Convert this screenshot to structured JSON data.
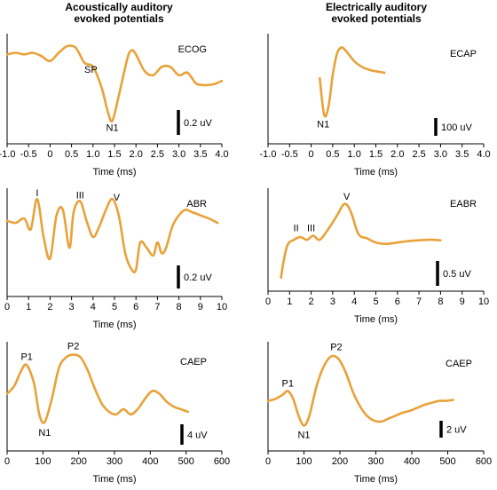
{
  "columns": [
    {
      "title_line1": "Acoustically auditory",
      "title_line2": "evoked potentials"
    },
    {
      "title_line1": "Electrically auditory",
      "title_line2": "evoked potentials"
    }
  ],
  "colors": {
    "trace": "#E8A23A",
    "axis": "#000000"
  },
  "chart_data": [
    {
      "id": "ecog",
      "type": "line",
      "panel_label": "ECOG",
      "xlabel": "Time (ms)",
      "xlim": [
        -1.0,
        4.0
      ],
      "xticks": [
        "-1.0",
        "-0.5",
        "0",
        "0.5",
        "1.0",
        "1.5",
        "2.0",
        "2.5",
        "3.0",
        "3.5",
        "4.0"
      ],
      "scale_label": "0.2 uV",
      "x": [
        -1.0,
        -0.8,
        -0.6,
        -0.4,
        -0.2,
        0.0,
        0.2,
        0.4,
        0.6,
        0.8,
        1.0,
        1.2,
        1.35,
        1.45,
        1.6,
        1.8,
        1.9,
        2.0,
        2.2,
        2.4,
        2.6,
        2.8,
        3.0,
        3.2,
        3.4,
        3.6,
        3.8,
        4.0
      ],
      "y": [
        0.2,
        0.22,
        0.2,
        0.22,
        0.18,
        0.12,
        0.22,
        0.3,
        0.28,
        0.1,
        0.05,
        -0.2,
        -0.5,
        -0.6,
        -0.3,
        0.15,
        0.25,
        0.2,
        0.0,
        -0.05,
        0.05,
        0.05,
        -0.05,
        -0.02,
        -0.15,
        -0.17,
        -0.16,
        -0.12
      ],
      "ylim": [
        -0.75,
        0.45
      ],
      "annotations": [
        {
          "text": "SP",
          "x": 0.95,
          "y": 0.02
        },
        {
          "text": "N1",
          "x": 1.45,
          "y": -0.68
        }
      ]
    },
    {
      "id": "ecap",
      "type": "line",
      "panel_label": "ECAP",
      "xlabel": "Time (ms)",
      "xlim": [
        -1.0,
        4.0
      ],
      "xticks": [
        "-1.0",
        "-0.5",
        "0",
        "0.5",
        "1.0",
        "1.5",
        "2.0",
        "2.5",
        "3.0",
        "3.5",
        "4.0"
      ],
      "scale_label": "100 uV",
      "x": [
        0.2,
        0.3,
        0.4,
        0.5,
        0.6,
        0.7,
        0.8,
        1.0,
        1.2,
        1.4,
        1.6,
        1.7
      ],
      "y": [
        60,
        -180,
        -130,
        80,
        220,
        260,
        240,
        170,
        130,
        110,
        100,
        95
      ],
      "ylim": [
        -300,
        350
      ],
      "annotations": [
        {
          "text": "N1",
          "x": 0.28,
          "y": -240
        }
      ]
    },
    {
      "id": "abr",
      "type": "line",
      "panel_label": "ABR",
      "xlabel": "Time (ms)",
      "xlim": [
        0,
        10
      ],
      "xticks": [
        "0",
        "1",
        "2",
        "3",
        "4",
        "5",
        "6",
        "7",
        "8",
        "9",
        "10"
      ],
      "scale_label": "0.2 uV",
      "x": [
        0,
        0.4,
        0.8,
        1.1,
        1.4,
        1.7,
        2.0,
        2.3,
        2.6,
        2.9,
        3.1,
        3.4,
        3.7,
        4.0,
        4.3,
        4.6,
        4.9,
        5.2,
        5.5,
        5.8,
        6.0,
        6.2,
        6.5,
        6.8,
        7.0,
        7.2,
        7.4,
        7.7,
        8.0,
        8.3,
        8.6,
        9.0,
        9.4,
        9.8
      ],
      "y": [
        0.0,
        -0.02,
        0.02,
        -0.08,
        0.2,
        -0.15,
        -0.35,
        0.05,
        0.1,
        -0.25,
        0.08,
        0.18,
        0.0,
        -0.15,
        -0.05,
        0.1,
        0.2,
        0.05,
        -0.3,
        -0.45,
        -0.45,
        -0.2,
        -0.25,
        -0.32,
        -0.2,
        -0.3,
        -0.25,
        -0.05,
        0.05,
        0.1,
        0.08,
        0.05,
        0.02,
        -0.02
      ],
      "ylim": [
        -0.6,
        0.3
      ],
      "annotations": [
        {
          "text": "I",
          "x": 1.4,
          "y": 0.26
        },
        {
          "text": "III",
          "x": 3.4,
          "y": 0.24
        },
        {
          "text": "V",
          "x": 5.1,
          "y": 0.22
        }
      ]
    },
    {
      "id": "eabr",
      "type": "line",
      "panel_label": "EABR",
      "xlabel": "Time (ms)",
      "xlim": [
        0,
        10
      ],
      "xticks": [
        "0",
        "1",
        "2",
        "3",
        "4",
        "5",
        "6",
        "7",
        "8",
        "9",
        "10"
      ],
      "scale_label": "0.5 uV",
      "x": [
        0.6,
        0.7,
        0.9,
        1.2,
        1.5,
        1.8,
        2.1,
        2.4,
        2.8,
        3.2,
        3.5,
        3.7,
        3.9,
        4.2,
        4.6,
        5.0,
        5.5,
        6.0,
        6.5,
        7.0,
        7.5,
        8.0
      ],
      "y": [
        -1.5,
        -1.0,
        -0.3,
        -0.1,
        0.0,
        -0.1,
        0.05,
        -0.1,
        0.3,
        0.8,
        1.2,
        1.15,
        0.8,
        0.1,
        -0.05,
        -0.2,
        -0.25,
        -0.2,
        -0.15,
        -0.12,
        -0.1,
        -0.12
      ],
      "ylim": [
        -1.6,
        1.8
      ],
      "annotations": [
        {
          "text": "II",
          "x": 1.3,
          "y": 0.35
        },
        {
          "text": "III",
          "x": 2.0,
          "y": 0.35
        },
        {
          "text": "V",
          "x": 3.65,
          "y": 1.5
        }
      ]
    },
    {
      "id": "caep_acoustic",
      "type": "line",
      "panel_label": "CAEP",
      "xlabel": "Time (ms)",
      "xlim": [
        0,
        600
      ],
      "xticks": [
        "0",
        "100",
        "200",
        "300",
        "400",
        "500",
        "600"
      ],
      "scale_label": "4 uV",
      "x": [
        0,
        20,
        40,
        55,
        75,
        90,
        105,
        125,
        145,
        165,
        185,
        205,
        225,
        245,
        265,
        285,
        305,
        325,
        345,
        365,
        385,
        405,
        425,
        445,
        465,
        485,
        505
      ],
      "y": [
        0.0,
        1.5,
        4.5,
        5.5,
        2.0,
        -4.0,
        -5.5,
        -1.0,
        5.0,
        7.0,
        7.5,
        7.0,
        4.5,
        1.0,
        -2.0,
        -3.5,
        -4.0,
        -3.0,
        -4.0,
        -3.0,
        -1.0,
        0.5,
        0.0,
        -1.5,
        -2.5,
        -3.0,
        -3.5
      ],
      "ylim": [
        -9,
        10
      ],
      "annotations": [
        {
          "text": "P1",
          "x": 55,
          "y": 7.2
        },
        {
          "text": "N1",
          "x": 105,
          "y": -7.5
        },
        {
          "text": "P2",
          "x": 185,
          "y": 9.2
        }
      ]
    },
    {
      "id": "caep_electric",
      "type": "line",
      "panel_label": "CAEP",
      "xlabel": "Time (ms)",
      "xlim": [
        0,
        600
      ],
      "xticks": [
        "0",
        "100",
        "200",
        "300",
        "400",
        "500",
        "600"
      ],
      "scale_label": "2 uV",
      "x": [
        0,
        20,
        40,
        55,
        70,
        85,
        100,
        115,
        135,
        155,
        175,
        195,
        215,
        235,
        255,
        275,
        295,
        315,
        335,
        355,
        375,
        395,
        415,
        435,
        455,
        475,
        495,
        515
      ],
      "y": [
        0.0,
        0.2,
        0.6,
        1.0,
        0.2,
        -1.5,
        -2.5,
        -1.5,
        1.5,
        3.5,
        4.5,
        4.3,
        3.0,
        1.0,
        -0.5,
        -1.5,
        -2.0,
        -2.1,
        -1.8,
        -1.5,
        -1.2,
        -1.0,
        -0.7,
        -0.4,
        -0.2,
        0.0,
        0.0,
        0.1
      ],
      "ylim": [
        -4,
        6
      ],
      "annotations": [
        {
          "text": "P1",
          "x": 55,
          "y": 1.8
        },
        {
          "text": "N1",
          "x": 100,
          "y": -3.4
        },
        {
          "text": "P2",
          "x": 190,
          "y": 5.5
        }
      ]
    }
  ]
}
